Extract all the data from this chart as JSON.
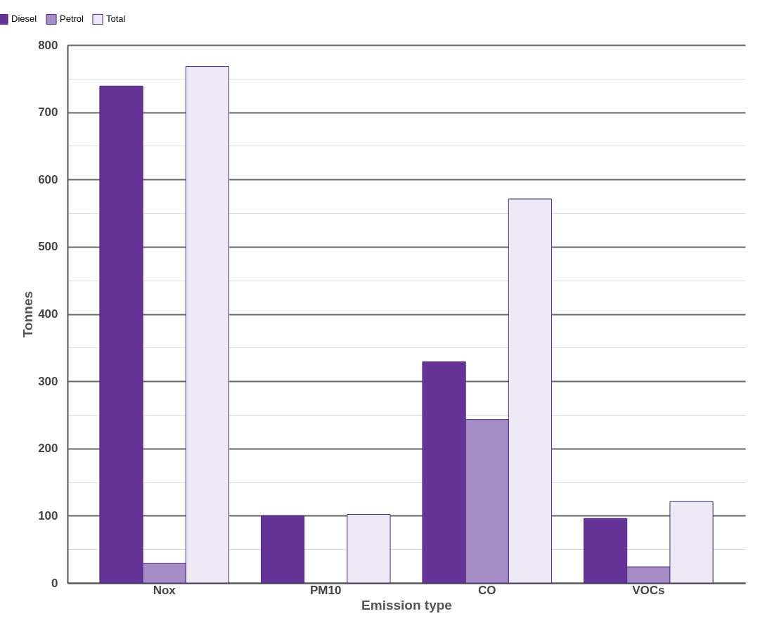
{
  "chart_data": {
    "type": "bar",
    "xlabel": "Emission type",
    "ylabel": "Tonnes",
    "categories": [
      "Nox",
      "PM10",
      "CO",
      "VOCs"
    ],
    "series": [
      {
        "name": "Diesel",
        "color": "#663399",
        "values": [
          739,
          100,
          329,
          96
        ]
      },
      {
        "name": "Petrol",
        "color": "#a68dc8",
        "values": [
          29,
          null,
          243,
          24
        ]
      },
      {
        "name": "Total",
        "color": "#ece8f4",
        "values": [
          768,
          102,
          571,
          121
        ]
      }
    ],
    "ylim": [
      0,
      800
    ],
    "yticks": [
      0,
      {
        "value": 50,
        "label": null
      },
      100,
      {
        "value": 150,
        "label": null
      },
      200,
      {
        "value": 250,
        "label": null
      },
      300,
      {
        "value": 350,
        "label": null
      },
      400,
      {
        "value": 450,
        "label": null
      },
      500,
      {
        "value": 550,
        "label": null
      },
      600,
      {
        "value": 650,
        "label": null
      },
      700,
      {
        "value": 750,
        "label": null
      },
      800
    ],
    "grid": "y",
    "legend": "top left"
  }
}
